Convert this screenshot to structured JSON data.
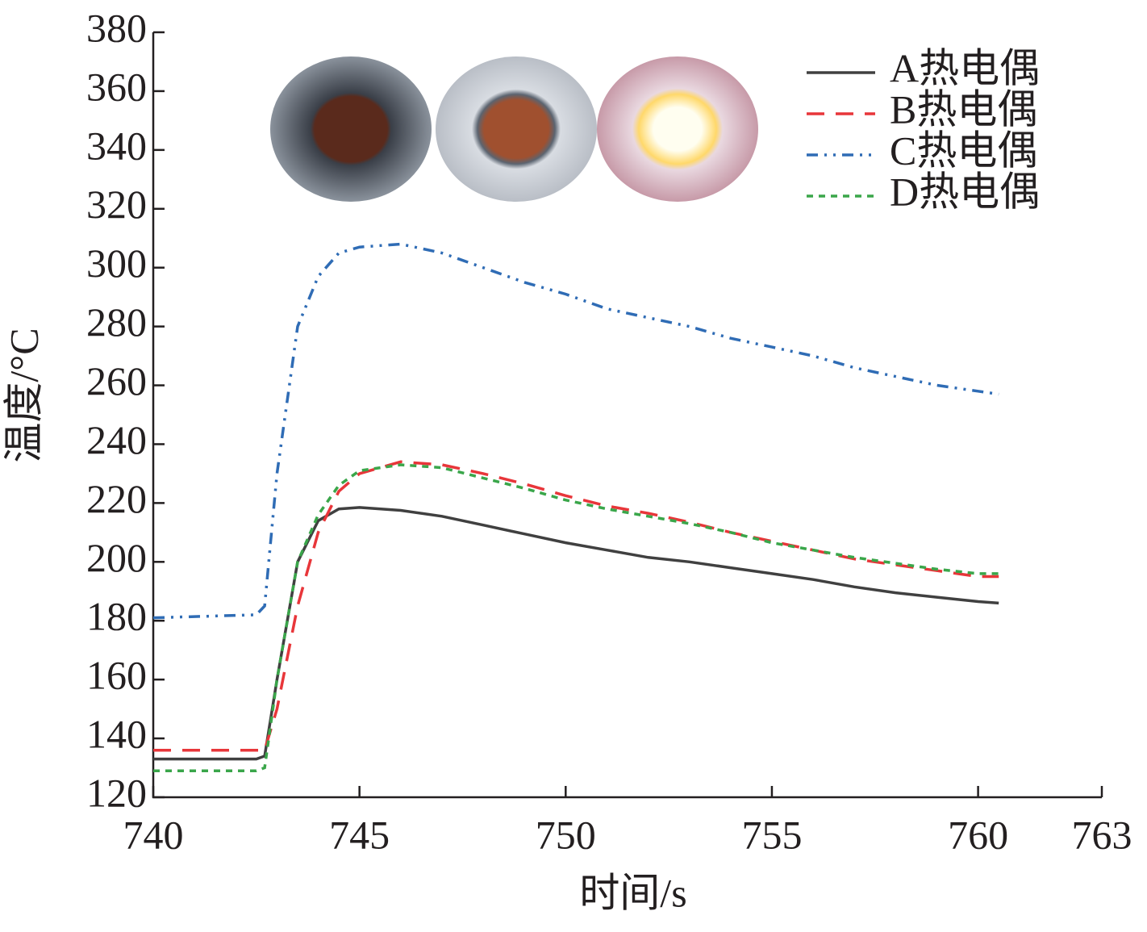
{
  "chart_data": {
    "type": "line",
    "x_label": "时间/s",
    "y_label": "温度/°C",
    "x": [
      740,
      742.5,
      742.7,
      743,
      743.5,
      744,
      744.5,
      745,
      746,
      747,
      748,
      749,
      750,
      751,
      752,
      753,
      754,
      755,
      756,
      757,
      758,
      759,
      760,
      760.5
    ],
    "series": [
      {
        "name": "A热电偶",
        "color": "#404040",
        "dash": "solid",
        "values": [
          133,
          133,
          134,
          160,
          200,
          214,
          218,
          218.5,
          217.5,
          215.5,
          212.5,
          209.5,
          206.5,
          204,
          201.5,
          200,
          198,
          196,
          194,
          191.5,
          189.5,
          188,
          186.5,
          186
        ]
      },
      {
        "name": "B热电偶",
        "color": "#e8363a",
        "dash": "dashed",
        "values": [
          136,
          136,
          136,
          150,
          185,
          210,
          224,
          230,
          234,
          233,
          230,
          226.5,
          222.5,
          219,
          216.5,
          213.5,
          210,
          207,
          204,
          201,
          199,
          197,
          195,
          195
        ]
      },
      {
        "name": "C热电偶",
        "color": "#2f6cb5",
        "dash": "dashdot",
        "values": [
          181,
          182,
          185,
          230,
          280,
          297,
          305,
          307,
          308,
          305,
          300,
          295,
          291,
          286,
          283,
          280,
          276,
          273,
          270,
          266,
          263,
          260,
          258,
          257
        ]
      },
      {
        "name": "D热电偶",
        "color": "#3aa64a",
        "dash": "dotted",
        "values": [
          129,
          129,
          130,
          160,
          200,
          216,
          226,
          231,
          233,
          232,
          228.5,
          225,
          221,
          218,
          215.5,
          213,
          210,
          206.5,
          204,
          201.5,
          199.5,
          197.5,
          196,
          196
        ]
      }
    ],
    "xlim": [
      740,
      763
    ],
    "xticks": [
      740,
      745,
      750,
      755,
      760,
      763
    ],
    "ylim": [
      120,
      380
    ],
    "yticks": [
      120,
      140,
      160,
      180,
      200,
      220,
      240,
      260,
      280,
      300,
      320,
      340,
      360,
      380
    ],
    "legend": "upper right",
    "grid": false
  }
}
